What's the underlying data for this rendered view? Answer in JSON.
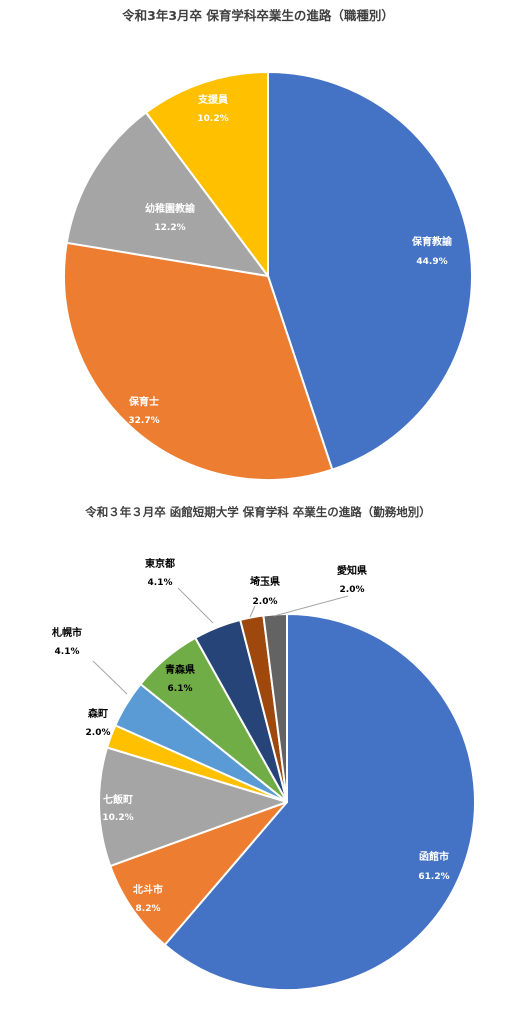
{
  "chart_data": [
    {
      "type": "pie",
      "title": "令和3年3月卒 保育学科卒業生の進路（職種別）",
      "slices": [
        {
          "label": "保育教諭",
          "value": 44.9,
          "display": "44.9%",
          "color": "#4472C4",
          "label_color": "#ffffff"
        },
        {
          "label": "保育士",
          "value": 32.7,
          "display": "32.7%",
          "color": "#ED7D31",
          "label_color": "#ffffff"
        },
        {
          "label": "幼稚園教諭",
          "value": 12.2,
          "display": "12.2%",
          "color": "#A5A5A5",
          "label_color": "#ffffff"
        },
        {
          "label": "支援員",
          "value": 10.2,
          "display": "10.2%",
          "color": "#FFC000",
          "label_color": "#ffffff"
        }
      ]
    },
    {
      "type": "pie",
      "title": "令和３年３月卒 函館短期大学 保育学科 卒業生の進路（勤務地別）",
      "slices": [
        {
          "label": "函館市",
          "value": 61.2,
          "display": "61.2%",
          "color": "#4472C4",
          "label_color": "#ffffff"
        },
        {
          "label": "北斗市",
          "value": 8.2,
          "display": "8.2%",
          "color": "#ED7D31",
          "label_color": "#ffffff"
        },
        {
          "label": "七飯町",
          "value": 10.2,
          "display": "10.2%",
          "color": "#A5A5A5",
          "label_color": "#ffffff"
        },
        {
          "label": "森町",
          "value": 2.0,
          "display": "2.0%",
          "color": "#FFC000",
          "label_color": "#000000"
        },
        {
          "label": "札幌市",
          "value": 4.1,
          "display": "4.1%",
          "color": "#5B9BD5",
          "label_color": "#000000"
        },
        {
          "label": "青森県",
          "value": 6.1,
          "display": "6.1%",
          "color": "#70AD47",
          "label_color": "#000000"
        },
        {
          "label": "東京都",
          "value": 4.1,
          "display": "4.1%",
          "color": "#264478",
          "label_color": "#000000"
        },
        {
          "label": "埼玉県",
          "value": 2.0,
          "display": "2.0%",
          "color": "#9E480E",
          "label_color": "#000000"
        },
        {
          "label": "愛知県",
          "value": 2.0,
          "display": "2.0%",
          "color": "#636363",
          "label_color": "#000000"
        }
      ]
    }
  ]
}
